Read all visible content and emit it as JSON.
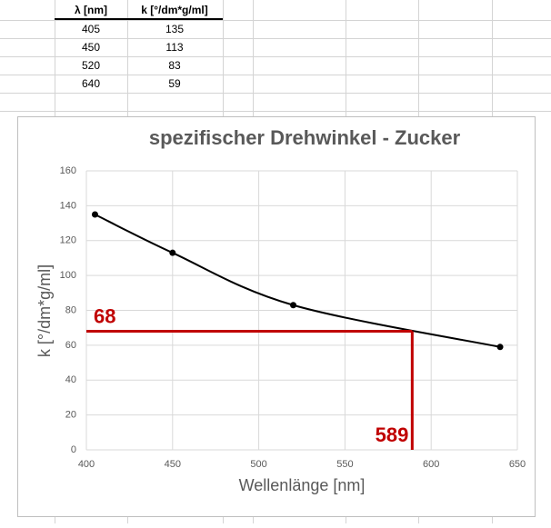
{
  "table": {
    "header": [
      "λ [nm]",
      "k [°/dm*g/ml]"
    ],
    "rows": [
      [
        405,
        135
      ],
      [
        450,
        113
      ],
      [
        520,
        83
      ],
      [
        640,
        59
      ]
    ]
  },
  "chart_data": {
    "type": "line",
    "title": "spezifischer Drehwinkel - Zucker",
    "x_label": "Wellenlänge [nm]",
    "y_label": "k [°/dm*g/ml]",
    "x": [
      405,
      450,
      520,
      640
    ],
    "series": [
      {
        "name": "k",
        "color": "#000000",
        "values": [
          135,
          113,
          83,
          59
        ]
      }
    ],
    "xlim": [
      400,
      650
    ],
    "xticks": [
      400,
      450,
      500,
      550,
      600,
      650
    ],
    "ylim": [
      0,
      160
    ],
    "yticks": [
      0,
      20,
      40,
      60,
      80,
      100,
      120,
      140,
      160
    ],
    "grid": true,
    "smooth": true,
    "reading": {
      "x": 589,
      "y": 68,
      "color": "#c00000"
    }
  }
}
